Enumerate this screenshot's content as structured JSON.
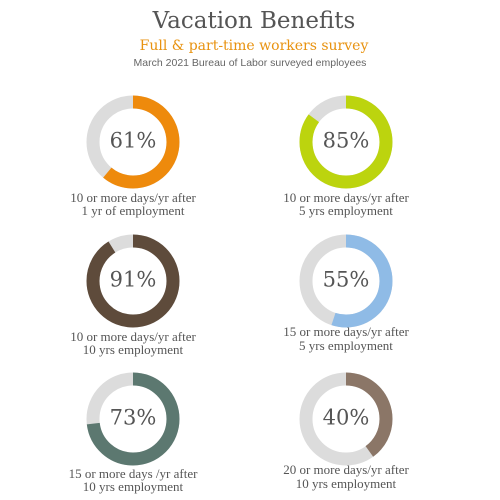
{
  "header": {
    "title": "Vacation Benefits",
    "subtitle": "Full & part-time workers  survey",
    "source": "March 2021  Bureau of Labor surveyed employees"
  },
  "chart_data": [
    {
      "type": "donut",
      "values": [
        61
      ],
      "value_labels": [
        "61%"
      ],
      "ylim": [
        0,
        100
      ],
      "color": "#ee8a0c",
      "caption": [
        "10 or more days/yr after",
        "1 yr of employment"
      ]
    },
    {
      "type": "donut",
      "values": [
        85
      ],
      "value_labels": [
        "85%"
      ],
      "ylim": [
        0,
        100
      ],
      "color": "#bcd40e",
      "caption": [
        "10 or more days/yr after",
        "5 yrs employment"
      ]
    },
    {
      "type": "donut",
      "values": [
        91
      ],
      "value_labels": [
        "91%"
      ],
      "ylim": [
        0,
        100
      ],
      "color": "#5e4b3b",
      "caption": [
        "10 or more days/yr after",
        "10 yrs employment"
      ]
    },
    {
      "type": "donut",
      "values": [
        55
      ],
      "value_labels": [
        "55%"
      ],
      "ylim": [
        0,
        100
      ],
      "color": "#8fbbe6",
      "caption": [
        "15 or more days/yr after",
        "5 yrs employment"
      ]
    },
    {
      "type": "donut",
      "values": [
        73
      ],
      "value_labels": [
        "73%"
      ],
      "ylim": [
        0,
        100
      ],
      "color": "#5c7870",
      "caption": [
        "15 or more days /yr after",
        "10 yrs employment"
      ]
    },
    {
      "type": "donut",
      "values": [
        40
      ],
      "value_labels": [
        "40%"
      ],
      "ylim": [
        0,
        100
      ],
      "color": "#8b7667",
      "caption": [
        "20 or more days/yr after",
        "10 yrs employment"
      ]
    }
  ]
}
